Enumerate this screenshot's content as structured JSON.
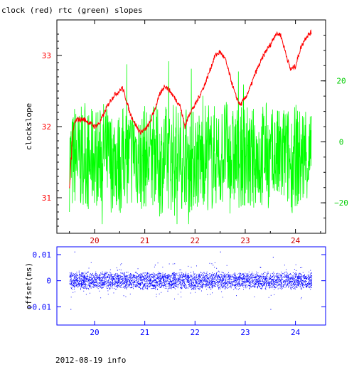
{
  "title": "clock (red) rtc (green) slopes",
  "footer": "2012-08-19 info",
  "colors": {
    "clock": "#ff0000",
    "rtc": "#00ff00",
    "offset": "#0000ff",
    "axes": "#000000",
    "left_ticks": "#ff0000",
    "right_ticks": "#00cc00",
    "bottom_ticks_top": "#cc0000",
    "bottom_ticks_bottom": "#0000ff"
  },
  "chart_data": [
    {
      "type": "line",
      "panel": "top",
      "ylabel": "clockslope",
      "xlim": [
        19.25,
        24.6
      ],
      "ylim": [
        30.5,
        33.5
      ],
      "y2lim": [
        -30,
        40
      ],
      "x_ticks": [
        20,
        21,
        22,
        23,
        24
      ],
      "x_tick_labels": [
        "20",
        "21",
        "22",
        "23",
        "24"
      ],
      "y_ticks": [
        31,
        32,
        33
      ],
      "y_tick_labels": [
        "31",
        "32",
        "33"
      ],
      "y2_ticks": [
        -20,
        0,
        20
      ],
      "y2_tick_labels": [
        "−20",
        "0",
        "20"
      ],
      "series": [
        {
          "axis": "left",
          "x": [
            19.5,
            19.55,
            19.6,
            19.65,
            19.7,
            19.8,
            19.9,
            20.0,
            20.1,
            20.2,
            20.3,
            20.4,
            20.5,
            20.55,
            20.6,
            20.7,
            20.8,
            20.9,
            21.0,
            21.1,
            21.2,
            21.3,
            21.4,
            21.5,
            21.6,
            21.7,
            21.8,
            21.9,
            22.0,
            22.1,
            22.2,
            22.3,
            22.4,
            22.5,
            22.6,
            22.7,
            22.8,
            22.9,
            23.0,
            23.1,
            23.2,
            23.3,
            23.4,
            23.5,
            23.6,
            23.7,
            23.8,
            23.9,
            24.0,
            24.1,
            24.2,
            24.3
          ],
          "y": [
            31.1,
            31.8,
            32.05,
            32.1,
            32.1,
            32.1,
            32.05,
            32.0,
            32.05,
            32.2,
            32.35,
            32.45,
            32.5,
            32.55,
            32.45,
            32.2,
            32.05,
            31.92,
            31.95,
            32.05,
            32.25,
            32.45,
            32.58,
            32.5,
            32.4,
            32.3,
            32.0,
            32.2,
            32.3,
            32.45,
            32.6,
            32.8,
            33.0,
            33.05,
            32.95,
            32.7,
            32.45,
            32.3,
            32.4,
            32.55,
            32.75,
            32.9,
            33.05,
            33.15,
            33.3,
            33.3,
            33.05,
            32.8,
            32.85,
            33.1,
            33.25,
            33.32
          ]
        },
        {
          "axis": "right",
          "x": [
            19.5,
            19.55,
            19.6,
            19.7,
            19.8,
            19.9,
            20.0,
            20.1,
            20.2,
            20.3,
            20.4,
            20.5,
            20.6,
            20.7,
            20.8,
            20.9,
            21.0,
            21.1,
            21.2,
            21.3,
            21.4,
            21.5,
            21.6,
            21.7,
            21.8,
            21.9,
            22.0,
            22.1,
            22.2,
            22.3,
            22.4,
            22.5,
            22.6,
            22.7,
            22.8,
            22.9,
            23.0,
            23.1,
            23.2,
            23.3,
            23.4,
            23.5,
            23.6,
            23.7,
            23.8,
            23.9,
            24.0,
            24.1,
            24.2,
            24.3
          ],
          "y": [
            -5,
            -15,
            5,
            -8,
            10,
            -12,
            6,
            -6,
            12,
            -10,
            3,
            -14,
            8,
            -4,
            15,
            -11,
            2,
            -7,
            11,
            -16,
            4,
            -9,
            13,
            -5,
            7,
            -13,
            1,
            -8,
            9,
            -12,
            5,
            -6,
            14,
            -10,
            2,
            -7,
            10,
            -15,
            6,
            -4,
            12,
            -11,
            3,
            -9,
            8,
            -13,
            4,
            -6,
            11,
            -8
          ]
        }
      ]
    },
    {
      "type": "scatter",
      "panel": "bottom",
      "ylabel": "offset(ms)",
      "xlim": [
        19.25,
        24.6
      ],
      "ylim": [
        -0.017,
        0.013
      ],
      "x_ticks": [
        20,
        21,
        22,
        23,
        24
      ],
      "x_tick_labels": [
        "20",
        "21",
        "22",
        "23",
        "24"
      ],
      "y_ticks": [
        -0.01,
        0,
        0.01
      ],
      "y_tick_labels": [
        "−0.01",
        "0",
        "0.01"
      ],
      "series": [
        {
          "x": [
            19.52,
            19.6,
            19.75,
            19.9,
            20.1,
            20.3,
            20.45,
            20.6,
            20.8,
            21.0,
            21.2,
            21.45,
            21.6,
            21.8,
            22.0,
            22.2,
            22.5,
            22.7,
            22.9,
            23.1,
            23.3,
            23.5,
            23.55,
            23.7,
            23.9,
            24.1,
            24.3
          ],
          "y": [
            -0.011,
            0.011,
            0.003,
            -0.002,
            0.002,
            -0.003,
            0.004,
            0.001,
            -0.002,
            0.003,
            0.006,
            -0.004,
            0.001,
            0.002,
            -0.003,
            0.002,
            0.011,
            -0.002,
            0.001,
            0.002,
            0.005,
            -0.011,
            0.009,
            0.002,
            -0.003,
            0.001,
            0.002
          ]
        }
      ]
    }
  ]
}
